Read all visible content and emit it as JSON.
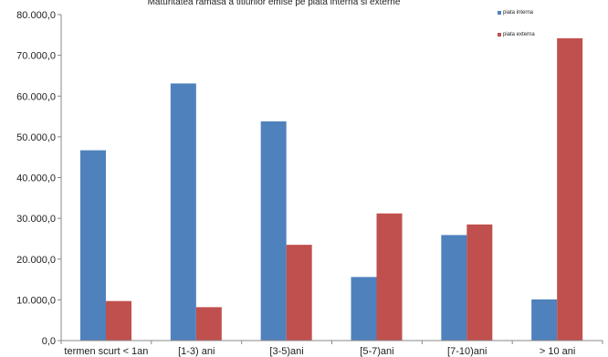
{
  "chart_data": {
    "type": "bar",
    "title": "Maturitatea ramasa a titlurilor emise pe piata interna si externe",
    "categories": [
      "termen scurt < 1an",
      "[1-3) ani",
      "[3-5)ani",
      "[5-7)ani",
      "[7-10)ani",
      "> 10 ani"
    ],
    "series": [
      {
        "name": "piata interna",
        "color": "#4F81BD",
        "values": [
          46700,
          63100,
          53800,
          15600,
          25900,
          10100
        ]
      },
      {
        "name": "piata externa",
        "color": "#C0504D",
        "values": [
          9700,
          8200,
          23500,
          31200,
          28500,
          74200
        ]
      }
    ],
    "ylim": [
      0,
      80000
    ],
    "y_ticks": [
      "0,0",
      "10.000,0",
      "20.000,0",
      "30.000,0",
      "40.000,0",
      "50.000,0",
      "60.000,0",
      "70.000,0",
      "80.000,0"
    ],
    "legend_position": "top-right",
    "grid": false
  }
}
